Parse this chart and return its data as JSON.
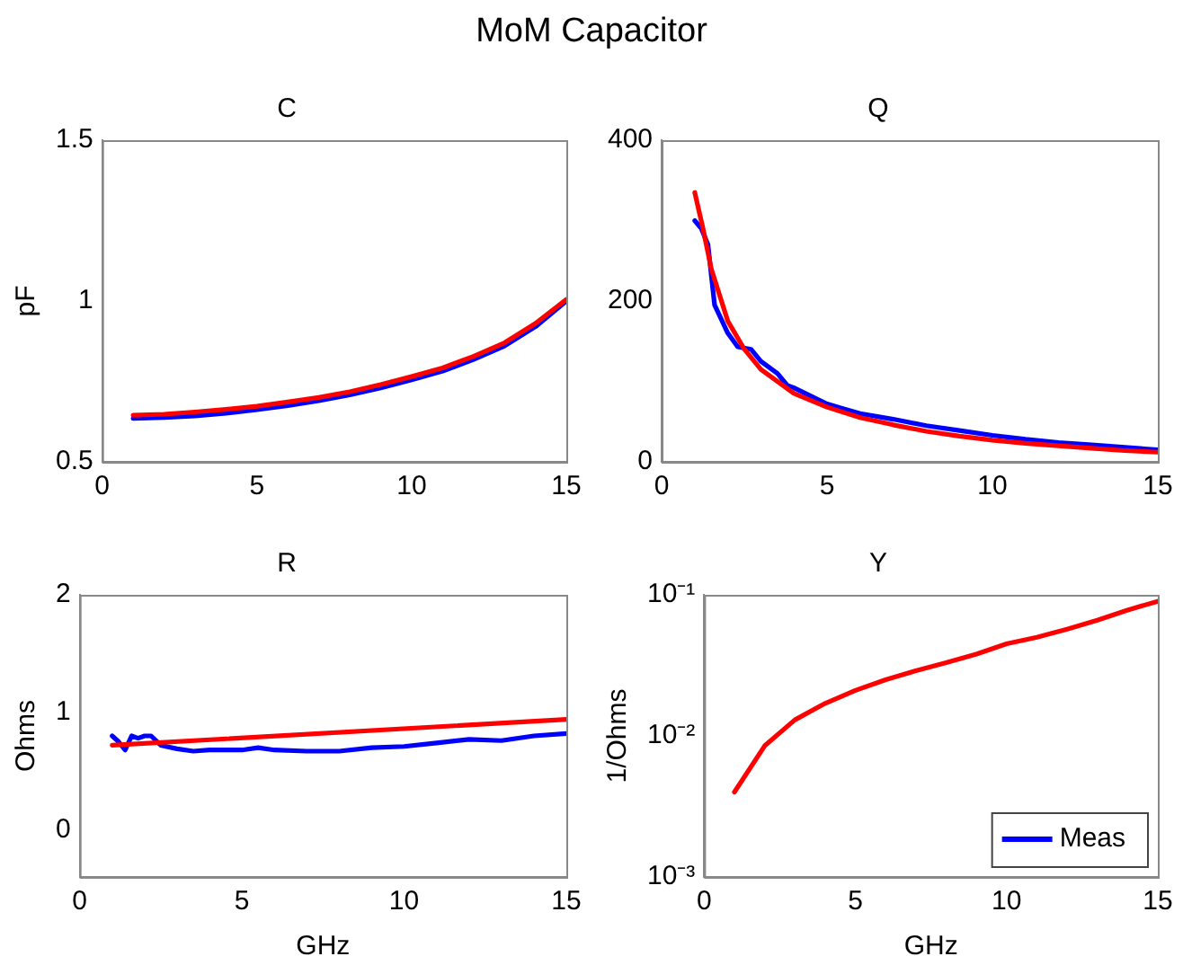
{
  "chart_data": [
    {
      "type": "other",
      "title": "MoM Capacitor"
    },
    {
      "type": "line",
      "title": "C",
      "ylabel": "pF",
      "xlim": [
        0,
        15
      ],
      "xticks": [
        0,
        5,
        10,
        15
      ],
      "ylim": [
        0.5,
        1.5
      ],
      "yticks": [
        0.5,
        1,
        1.5
      ],
      "x": [
        1,
        2,
        3,
        4,
        5,
        6,
        7,
        8,
        9,
        10,
        11,
        12,
        13,
        14,
        15
      ],
      "series": [
        {
          "color": "#0000ff",
          "values": [
            0.635,
            0.638,
            0.643,
            0.651,
            0.662,
            0.675,
            0.69,
            0.708,
            0.73,
            0.755,
            0.782,
            0.818,
            0.86,
            0.92,
            1.0
          ]
        },
        {
          "color": "#ff0000",
          "values": [
            0.645,
            0.648,
            0.655,
            0.663,
            0.673,
            0.686,
            0.7,
            0.718,
            0.74,
            0.765,
            0.792,
            0.828,
            0.87,
            0.93,
            1.005
          ]
        }
      ]
    },
    {
      "type": "line",
      "title": "Q",
      "xlim": [
        0,
        15
      ],
      "xticks": [
        0,
        5,
        10,
        15
      ],
      "ylim": [
        0,
        400
      ],
      "yticks": [
        0,
        200,
        400
      ],
      "series": [
        {
          "color": "#0000ff",
          "x": [
            1,
            1.2,
            1.4,
            1.6,
            2,
            2.3,
            2.7,
            3,
            3.5,
            3.8,
            4,
            4.5,
            5,
            5.5,
            6,
            7,
            8,
            9,
            10,
            11,
            12,
            13,
            14,
            15
          ],
          "values": [
            300,
            290,
            270,
            195,
            160,
            143,
            140,
            125,
            110,
            95,
            92,
            82,
            72,
            66,
            60,
            53,
            45,
            39,
            33,
            28,
            24,
            21,
            18,
            15
          ]
        },
        {
          "color": "#ff0000",
          "x": [
            1,
            1.25,
            1.5,
            2,
            2.5,
            3,
            4,
            5,
            6,
            7,
            8,
            9,
            10,
            11,
            12,
            13,
            14,
            15
          ],
          "values": [
            335,
            290,
            240,
            175,
            140,
            115,
            85,
            68,
            55,
            46,
            38,
            32,
            27,
            23,
            20,
            17,
            14,
            12
          ]
        }
      ]
    },
    {
      "type": "line",
      "title": "R",
      "xlabel": "GHz",
      "ylabel": "Ohms",
      "xlim": [
        0,
        15
      ],
      "xticks": [
        0,
        5,
        10,
        15
      ],
      "ylim": [
        -0.4,
        2
      ],
      "yticks": [
        0,
        1,
        2
      ],
      "series": [
        {
          "color": "#0000ff",
          "x": [
            1,
            1.2,
            1.4,
            1.6,
            1.8,
            2,
            2.2,
            2.5,
            3,
            3.5,
            4,
            5,
            5.5,
            6,
            7,
            8,
            9,
            10,
            11,
            12,
            13,
            14,
            15
          ],
          "values": [
            0.8,
            0.75,
            0.68,
            0.8,
            0.78,
            0.8,
            0.8,
            0.72,
            0.69,
            0.67,
            0.68,
            0.68,
            0.7,
            0.68,
            0.67,
            0.67,
            0.7,
            0.71,
            0.74,
            0.77,
            0.76,
            0.8,
            0.82
          ]
        },
        {
          "color": "#ff0000",
          "x": [
            1,
            15
          ],
          "values": [
            0.72,
            0.94
          ]
        }
      ]
    },
    {
      "type": "line",
      "title": "Y",
      "xlabel": "GHz",
      "ylabel": "1/Ohms",
      "log": "y",
      "legend": "bottom right",
      "xlim": [
        0,
        15
      ],
      "xticks": [
        0,
        5,
        10,
        15
      ],
      "ylim": [
        0.001,
        0.1
      ],
      "yticks": [
        {
          "value": 0.001,
          "label": "10⁻³"
        },
        {
          "value": 0.01,
          "label": "10⁻²"
        },
        {
          "value": 0.1,
          "label": "10⁻¹"
        }
      ],
      "x": [
        1,
        2,
        3,
        4,
        5,
        6,
        7,
        8,
        9,
        10,
        11,
        12,
        13,
        14,
        15
      ],
      "series": [
        {
          "name": "Meas",
          "color": "#0000ff",
          "values": [
            null,
            null,
            null,
            null,
            null,
            null,
            null,
            null,
            null,
            null,
            null,
            null,
            null,
            null,
            null
          ]
        },
        {
          "color": "#ff0000",
          "values": [
            0.004,
            0.0085,
            0.013,
            0.017,
            0.021,
            0.025,
            0.029,
            0.033,
            0.038,
            0.045,
            0.05,
            0.057,
            0.066,
            0.078,
            0.09
          ]
        }
      ]
    }
  ]
}
